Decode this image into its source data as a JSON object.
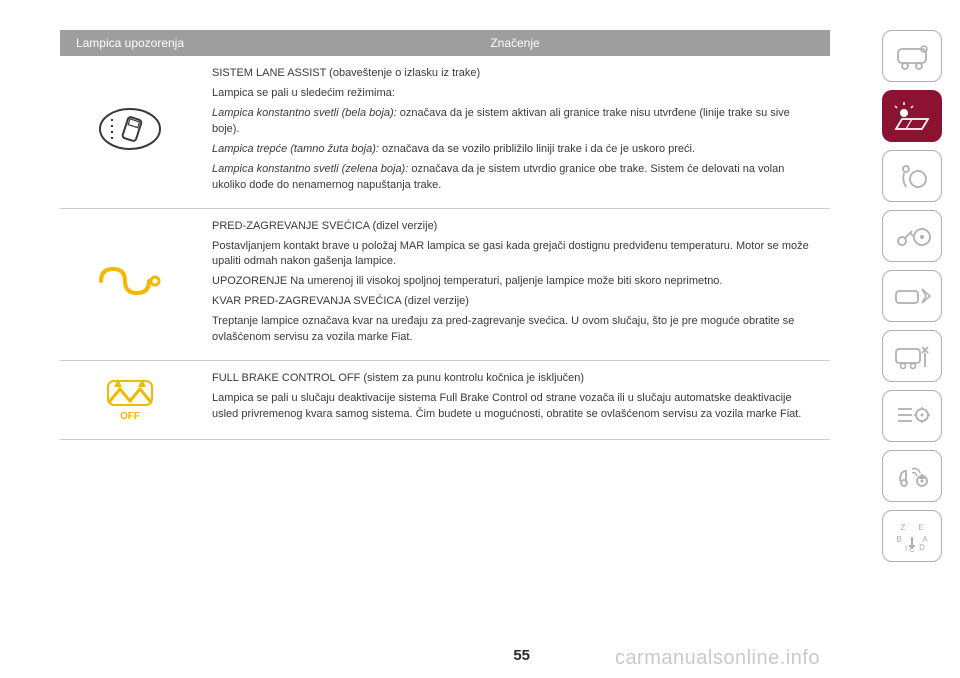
{
  "table": {
    "header_bg": "#9e9e9e",
    "header_fg": "#ffffff",
    "col1": "Lampica upozorenja",
    "col2": "Značenje",
    "rows": [
      {
        "icon": "lane-assist",
        "icon_color": "#3a3a3a",
        "lines": [
          {
            "text": "SISTEM LANE ASSIST (obaveštenje o izlasku iz trake)"
          },
          {
            "text": "Lampica se pali u sledećim režimima:"
          },
          {
            "prefix": "Lampica konstantno svetli (bela boja): ",
            "prefix_italic": true,
            "text": "označava da je sistem aktivan ali granice trake nisu utvrđene (linije trake su sive boje)."
          },
          {
            "prefix": "Lampica trepće (tamno žuta boja): ",
            "prefix_italic": true,
            "text": "označava da se vozilo približilo liniji trake i da će je uskoro preći."
          },
          {
            "prefix": "Lampica konstantno svetli (zelena boja): ",
            "prefix_italic": true,
            "text": "označava da je sistem utvrdio granice obe trake. Sistem će delovati na volan ukoliko dođe do nenamernog napuštanja trake."
          }
        ]
      },
      {
        "icon": "glow-plug",
        "icon_color": "#f5b800",
        "lines": [
          {
            "text": "PRED-ZAGREVANJE SVEĆICA (dizel verzije)"
          },
          {
            "text": "Postavljanjem kontakt brave u položaj MAR lampica se gasi kada grejači dostignu predviđenu temperaturu. Motor se može upaliti odmah nakon gašenja lampice."
          },
          {
            "text": "UPOZORENJE Na umerenoj ili visokoj spoljnoj temperaturi, paljenje lampice može biti skoro neprimetno."
          },
          {
            "text": "KVAR PRED-ZAGREVANJA SVEĆICA (dizel verzije)"
          },
          {
            "text": "Treptanje lampice označava kvar na uređaju za pred-zagrevanje svećica. U ovom slučaju, što je pre moguće obratite se ovlašćenom servisu za vozila marke Fiat."
          }
        ]
      },
      {
        "icon": "brake-off",
        "icon_color": "#f5b800",
        "icon_label": "OFF",
        "lines": [
          {
            "text": "FULL BRAKE CONTROL OFF (sistem za punu kontrolu kočnica je isključen)"
          },
          {
            "text": "Lampica se pali u slučaju deaktivacije sistema Full Brake Control od strane vozača ili u slučaju automatske deaktivacije usled privremenog kvara samog sistema. Čim budete u mogućnosti, obratite se ovlašćenom servisu za vozila marke Fiat."
          }
        ]
      }
    ]
  },
  "sidebar": {
    "active_bg": "#8b1230",
    "inactive_stroke": "#b0b0b0",
    "items": [
      {
        "name": "vehicle-front-icon",
        "active": false
      },
      {
        "name": "warning-light-icon",
        "active": true
      },
      {
        "name": "airbag-icon",
        "active": false
      },
      {
        "name": "key-steering-icon",
        "active": false
      },
      {
        "name": "collision-icon",
        "active": false
      },
      {
        "name": "service-icon",
        "active": false
      },
      {
        "name": "settings-list-icon",
        "active": false
      },
      {
        "name": "media-nav-icon",
        "active": false
      },
      {
        "name": "alphabet-dial-icon",
        "active": false
      }
    ]
  },
  "page_number": "55",
  "watermark": "carmanualsonline.info"
}
